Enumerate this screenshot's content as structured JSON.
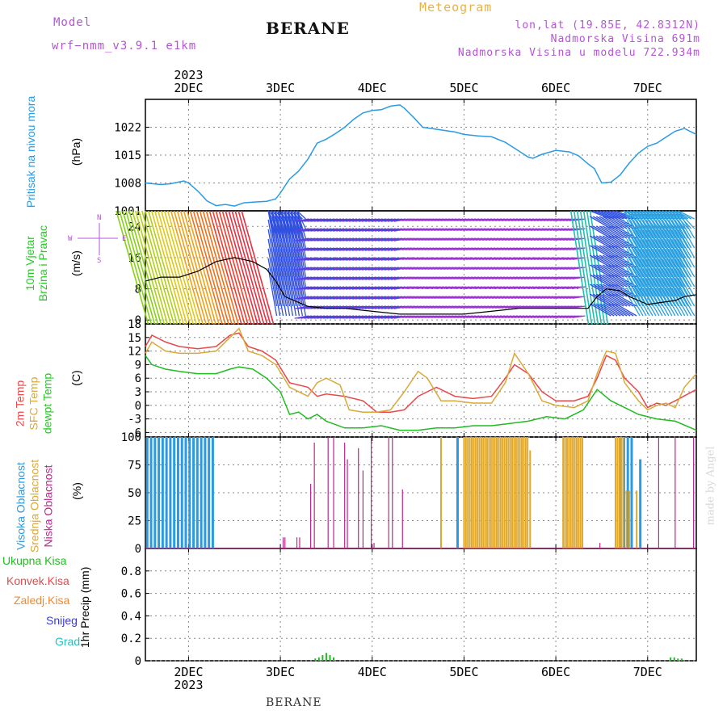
{
  "header": {
    "model_label": "Model",
    "model_name": "wrf−nmm_v3.9.1  e1km",
    "meteogram": "Meteogram",
    "station": "BERANE",
    "lonlat": "lon,lat (19.85E, 42.8312N)",
    "altitude": "Nadmorska Visina 691m",
    "model_altitude": "Nadmorska Visina u modelu 722.934m"
  },
  "footer": {
    "station": "BERANE",
    "watermark": "made by Angel"
  },
  "colors": {
    "pressure": "#2a9be3",
    "temp": "#e8484a",
    "sfc": "#d9a93a",
    "dew": "#22bb22",
    "high_cloud": "#2a9be3",
    "mid_cloud": "#e0a92c",
    "low_cloud": "#c0268c",
    "grid": "#888888",
    "purple_label": "#b454d6"
  },
  "time_axis": {
    "year": "2023",
    "days": [
      "2DEC",
      "3DEC",
      "4DEC",
      "5DEC",
      "6DEC",
      "7DEC"
    ],
    "x_range": [
      1.53,
      7.53
    ]
  },
  "chart_data": [
    {
      "type": "line",
      "ylabel": "Pritisak na nivou mora",
      "unit": "(hPa)",
      "ylim": [
        1001,
        1029
      ],
      "yticks": [
        1001,
        1008,
        1015,
        1022
      ],
      "series": [
        {
          "x": [
            1.53,
            1.7,
            1.8,
            1.95,
            2.0,
            2.1,
            2.2,
            2.3,
            2.4,
            2.5,
            2.6,
            2.7,
            2.85,
            2.95,
            3.0,
            3.1,
            3.2,
            3.3,
            3.4,
            3.5,
            3.6,
            3.7,
            3.8,
            3.9,
            4.0,
            4.1,
            4.2,
            4.3,
            4.35,
            4.45,
            4.55,
            4.7,
            4.9,
            5.0,
            5.15,
            5.3,
            5.45,
            5.6,
            5.7,
            5.75,
            5.85,
            6.0,
            6.15,
            6.25,
            6.35,
            6.42,
            6.5,
            6.6,
            6.7,
            6.8,
            6.9,
            7.0,
            7.1,
            7.2,
            7.3,
            7.4,
            7.53
          ],
          "values": [
            1008,
            1007.6,
            1007.8,
            1008.5,
            1008,
            1006,
            1003.5,
            1002.3,
            1002.6,
            1002.2,
            1003,
            1003.2,
            1003.4,
            1004,
            1005.5,
            1009,
            1011,
            1014,
            1018,
            1019,
            1020.4,
            1022,
            1024,
            1025.6,
            1026.2,
            1026.4,
            1027.3,
            1027.6,
            1026.8,
            1024.5,
            1022,
            1021.5,
            1020.8,
            1020.2,
            1019.8,
            1019.6,
            1018.2,
            1016,
            1014.5,
            1014.2,
            1015.2,
            1016.2,
            1015.8,
            1014.8,
            1012.8,
            1011.6,
            1008,
            1008.2,
            1010,
            1013,
            1015.5,
            1017.2,
            1018,
            1019.5,
            1021,
            1021.7,
            1020.2
          ]
        }
      ]
    },
    {
      "type": "line",
      "ylabel": "10m Vjetar Brzina i Pravac",
      "unit": "(m/s)",
      "compass": [
        "N",
        "W",
        "E",
        "S"
      ],
      "ylim": [
        -1,
        28
      ],
      "yticks": [
        0,
        8,
        16,
        24
      ],
      "series": [
        {
          "x": [
            1.53,
            1.7,
            1.9,
            2.1,
            2.3,
            2.5,
            2.7,
            2.85,
            2.95,
            3.05,
            3.3,
            3.5,
            3.7,
            3.9,
            4.1,
            4.3,
            4.5,
            4.8,
            5.0,
            5.2,
            5.4,
            5.6,
            5.8,
            6.0,
            6.2,
            6.35,
            6.45,
            6.55,
            6.7,
            6.8,
            6.9,
            7.0,
            7.15,
            7.3,
            7.4,
            7.53
          ],
          "values": [
            10,
            11,
            11,
            12.5,
            15,
            16,
            15,
            13,
            10,
            6,
            3.5,
            3,
            3,
            2.5,
            2,
            1.5,
            1.5,
            1.5,
            1.5,
            2,
            2.5,
            3,
            3,
            3,
            3,
            3,
            6,
            8,
            7.5,
            6,
            5,
            4,
            4.5,
            5,
            6,
            6.5
          ]
        }
      ]
    },
    {
      "type": "line",
      "ylabel": "2m Temp / SFC Temp / dewpt Temp",
      "unit": "(C)",
      "ylim": [
        -7,
        18
      ],
      "yticks": [
        -6,
        -3,
        0,
        3,
        6,
        9,
        12,
        15,
        18
      ],
      "series": [
        {
          "name": "2m Temp",
          "x": [
            1.53,
            1.6,
            1.75,
            1.9,
            2.1,
            2.3,
            2.45,
            2.55,
            2.65,
            2.8,
            2.95,
            3.1,
            3.3,
            3.4,
            3.5,
            3.7,
            3.9,
            4.05,
            4.2,
            4.35,
            4.5,
            4.7,
            4.9,
            5.1,
            5.3,
            5.45,
            5.55,
            5.7,
            5.85,
            6.0,
            6.2,
            6.35,
            6.45,
            6.55,
            6.65,
            6.75,
            6.9,
            7.0,
            7.1,
            7.2,
            7.3,
            7.53
          ],
          "values": [
            13,
            15.5,
            14,
            13,
            12.5,
            13,
            15.5,
            16,
            13,
            12,
            10,
            5,
            4,
            2,
            2.5,
            2,
            1,
            -1.5,
            -1.5,
            -1,
            2,
            4,
            2,
            1.5,
            2,
            6,
            9,
            7,
            3,
            1,
            1,
            2,
            6,
            11,
            10,
            6,
            3,
            -0.5,
            0.5,
            0,
            1,
            3.5
          ]
        },
        {
          "name": "SFC Temp",
          "x": [
            1.53,
            1.6,
            1.75,
            1.9,
            2.1,
            2.3,
            2.45,
            2.55,
            2.65,
            2.8,
            2.95,
            3.1,
            3.3,
            3.4,
            3.5,
            3.65,
            3.75,
            3.9,
            4.05,
            4.2,
            4.35,
            4.5,
            4.6,
            4.75,
            4.9,
            5.1,
            5.3,
            5.45,
            5.55,
            5.7,
            5.85,
            6.0,
            6.2,
            6.35,
            6.45,
            6.55,
            6.65,
            6.75,
            6.9,
            7.0,
            7.1,
            7.2,
            7.3,
            7.4,
            7.53
          ],
          "values": [
            11.5,
            14,
            12,
            11.5,
            11.5,
            12,
            15,
            17,
            12,
            11,
            9,
            4,
            2,
            5,
            6,
            4.5,
            -1,
            -1.5,
            -1.5,
            -1,
            3,
            7.5,
            6,
            1,
            1,
            0.5,
            0.5,
            5,
            11.5,
            7,
            1,
            0,
            -0.5,
            1,
            7,
            12,
            11.5,
            5,
            1,
            -1,
            0,
            0.5,
            -0.5,
            4,
            7
          ]
        },
        {
          "name": "dewpt Temp",
          "x": [
            1.53,
            1.6,
            1.75,
            1.9,
            2.1,
            2.3,
            2.45,
            2.55,
            2.7,
            2.85,
            3.0,
            3.1,
            3.2,
            3.3,
            3.4,
            3.5,
            3.7,
            3.9,
            4.1,
            4.3,
            4.5,
            4.7,
            4.9,
            5.1,
            5.3,
            5.5,
            5.7,
            5.9,
            6.1,
            6.3,
            6.45,
            6.6,
            6.75,
            6.9,
            7.1,
            7.3,
            7.53
          ],
          "values": [
            11,
            9,
            8,
            7.5,
            7,
            7,
            8,
            8.5,
            8,
            6,
            3,
            -2,
            -1.5,
            -3,
            -2,
            -3.5,
            -5,
            -5,
            -4.5,
            -5.5,
            -5.5,
            -5,
            -5,
            -4.5,
            -4.5,
            -4,
            -3.5,
            -2.5,
            -3,
            -1,
            3.5,
            1,
            -0.5,
            -2,
            -3,
            -3.5,
            -5.5
          ]
        }
      ]
    },
    {
      "type": "bar",
      "ylabel": "Visoka Oblacnost / Srednja Oblacnost / Niska Oblacnost",
      "unit": "(%)",
      "ylim": [
        0,
        100
      ],
      "yticks": [
        0,
        25,
        50,
        75,
        100
      ],
      "series": [
        {
          "name": "Visoka Oblacnost",
          "segments": [
            {
              "from": 1.55,
              "to": 2.27,
              "step": 0.042,
              "value": 100
            },
            {
              "from": 4.93,
              "to": 4.97,
              "step": 0.042,
              "value": 100
            },
            {
              "from": 6.7,
              "to": 6.85,
              "step": 0.042,
              "value": 100
            }
          ],
          "bars": [
            {
              "x": 6.92,
              "value": 80
            }
          ]
        },
        {
          "name": "Srednja Oblacnost",
          "segments": [
            {
              "from": 5.0,
              "to": 5.7,
              "step": 0.021,
              "value": 100
            },
            {
              "from": 6.08,
              "to": 6.3,
              "step": 0.021,
              "value": 100
            },
            {
              "from": 6.65,
              "to": 6.75,
              "step": 0.021,
              "value": 100
            }
          ],
          "bars": [
            {
              "x": 4.75,
              "value": 100
            },
            {
              "x": 5.72,
              "value": 88
            },
            {
              "x": 6.77,
              "value": 52
            },
            {
              "x": 6.8,
              "value": 52
            },
            {
              "x": 6.88,
              "value": 52
            }
          ]
        },
        {
          "name": "Niska Oblacnost",
          "bars": [
            {
              "x": 3.03,
              "value": 10
            },
            {
              "x": 3.05,
              "value": 10
            },
            {
              "x": 3.18,
              "value": 10
            },
            {
              "x": 3.21,
              "value": 10
            },
            {
              "x": 3.33,
              "value": 58
            },
            {
              "x": 3.37,
              "value": 95
            },
            {
              "x": 3.52,
              "value": 100
            },
            {
              "x": 3.58,
              "value": 100
            },
            {
              "x": 3.7,
              "value": 95
            },
            {
              "x": 3.73,
              "value": 80
            },
            {
              "x": 3.85,
              "value": 90
            },
            {
              "x": 3.9,
              "value": 70
            },
            {
              "x": 3.99,
              "value": 100
            },
            {
              "x": 4.02,
              "value": 5
            },
            {
              "x": 4.18,
              "value": 100
            },
            {
              "x": 4.22,
              "value": 100
            },
            {
              "x": 4.33,
              "value": 53
            },
            {
              "x": 6.48,
              "value": 5
            },
            {
              "x": 7.12,
              "value": 100
            },
            {
              "x": 7.3,
              "value": 100
            },
            {
              "x": 7.5,
              "value": 100
            }
          ]
        }
      ]
    },
    {
      "type": "bar",
      "ylabel": "1hr Precip",
      "unit": "(mm)",
      "legend": [
        "Ukupna Kisa",
        "Konvek.Kisa",
        "Zaledj.Kisa",
        "Snijeg",
        "Grad"
      ],
      "ylim": [
        0,
        1.0
      ],
      "yticks": [
        0,
        0.2,
        0.4,
        0.6,
        0.8
      ],
      "series": [
        {
          "name": "Ukupna Kisa",
          "x": [
            3.38,
            3.42,
            3.46,
            3.5,
            3.54,
            3.58,
            7.25,
            7.29,
            7.33,
            7.37
          ],
          "values": [
            0.02,
            0.03,
            0.05,
            0.07,
            0.05,
            0.03,
            0.03,
            0.03,
            0.02,
            0.02
          ]
        }
      ]
    }
  ]
}
